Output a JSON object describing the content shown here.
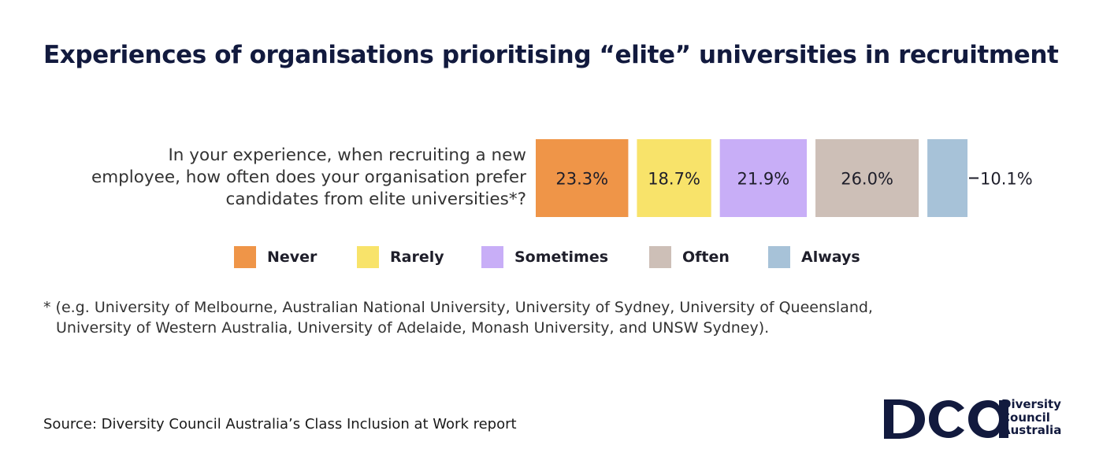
{
  "title": "Experiences of organisations prioritising “elite” universities in recruitment",
  "question_lines": [
    "In your experience, when recruiting a new",
    "employee, how often does your organisation prefer",
    "candidates from elite universities*?"
  ],
  "chart_data": {
    "type": "bar",
    "orientation": "horizontal-stacked",
    "categories": [
      "In your experience, when recruiting a new employee, how often does your organisation prefer candidates from elite universities*?"
    ],
    "series": [
      {
        "name": "Never",
        "values": [
          23.3
        ],
        "label": "23.3%",
        "color": "#ef9548"
      },
      {
        "name": "Rarely",
        "values": [
          18.7
        ],
        "label": "18.7%",
        "color": "#f8e36a"
      },
      {
        "name": "Sometimes",
        "values": [
          21.9
        ],
        "label": "21.9%",
        "color": "#c8aef7"
      },
      {
        "name": "Often",
        "values": [
          26.0
        ],
        "label": "26.0%",
        "color": "#cdbfb7"
      },
      {
        "name": "Always",
        "values": [
          10.1
        ],
        "label": "10.1%",
        "color": "#a7c2d8"
      }
    ],
    "legend_position": "bottom",
    "grid": false
  },
  "footnote_lines": [
    "* (e.g. University of Melbourne, Australian National University, University of Sydney, University of Queensland,",
    "University of Western Australia, University of Adelaide, Monash University, and UNSW Sydney)."
  ],
  "source": "Source: Diversity Council Australia’s Class Inclusion at Work report",
  "logo": {
    "mark": "DCA",
    "words": [
      "Diversity",
      "Council",
      "Australia"
    ],
    "color": "#121a3e"
  }
}
